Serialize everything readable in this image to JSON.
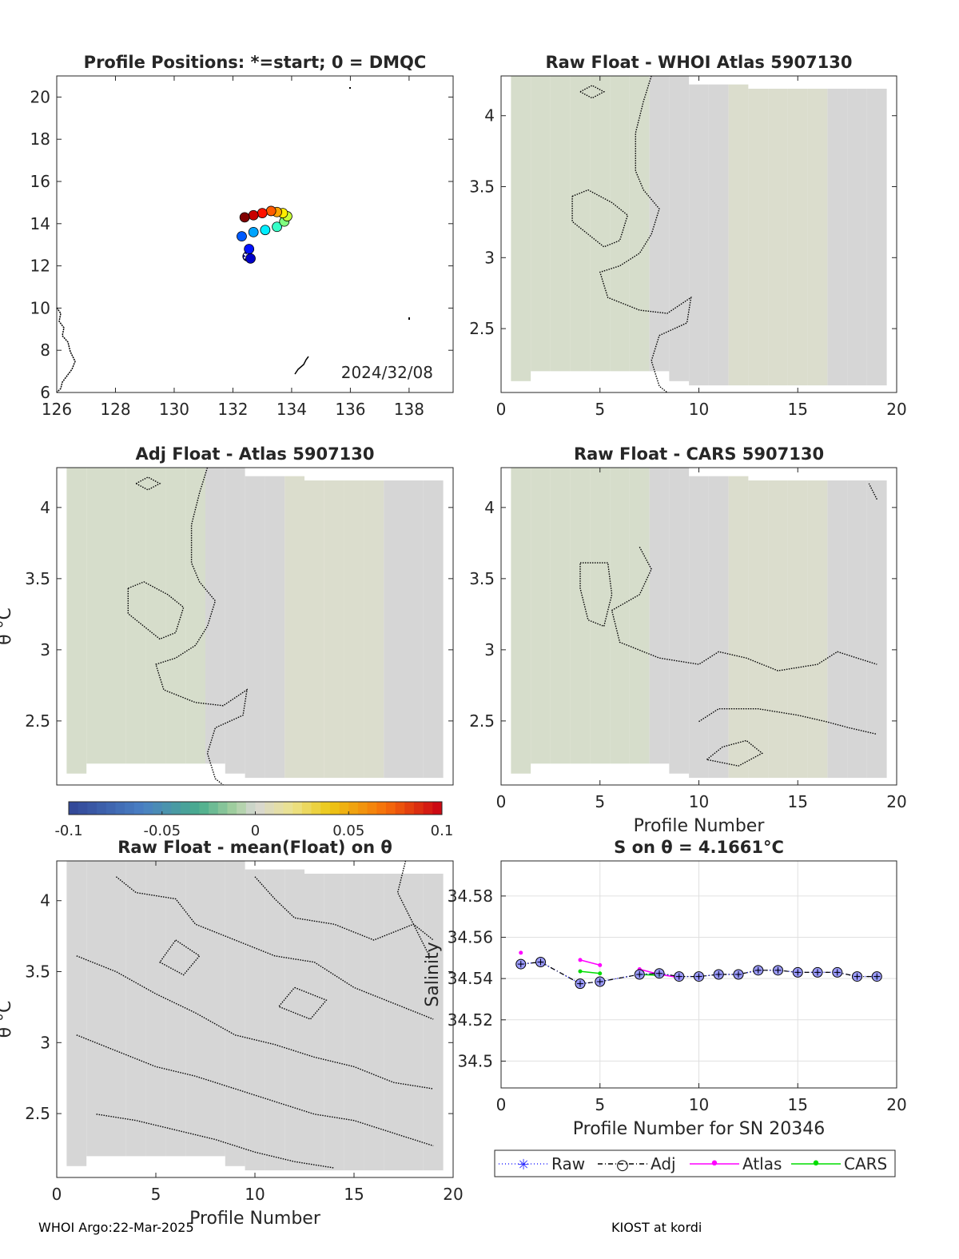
{
  "footer": {
    "left": "WHOI Argo:22-Mar-2025",
    "right": "KIOST at kordi"
  },
  "colors": {
    "surface": "#d6d6d6",
    "surface_tint_green": "#d6ddcb",
    "surface_tint_yellow": "#dbddcd",
    "raw_marker": "#2828ff",
    "adj_marker": "#000000",
    "atlas_line": "#ff00ff",
    "cars_line": "#00dd00"
  },
  "chart_data": [
    {
      "type": "scatter",
      "title": "Profile Positions: *=start; 0 = DMQC",
      "xlim": [
        126,
        139.5
      ],
      "ylim": [
        6,
        21
      ],
      "xticks": [
        "126",
        "128",
        "130",
        "132",
        "134",
        "136",
        "138"
      ],
      "yticks": [
        "6",
        "8",
        "10",
        "12",
        "14",
        "16",
        "18",
        "20"
      ],
      "annotation": "2024/32/08",
      "colormap": "jet",
      "start_index": 0,
      "points": [
        {
          "lon": 132.5,
          "lat": 12.45
        },
        {
          "lon": 132.6,
          "lat": 12.35
        },
        {
          "lon": 132.55,
          "lat": 12.8
        },
        {
          "lon": 132.3,
          "lat": 13.4
        },
        {
          "lon": 132.7,
          "lat": 13.6
        },
        {
          "lon": 133.1,
          "lat": 13.7
        },
        {
          "lon": 133.5,
          "lat": 13.85
        },
        {
          "lon": 133.75,
          "lat": 14.1
        },
        {
          "lon": 133.85,
          "lat": 14.35
        },
        {
          "lon": 133.7,
          "lat": 14.5
        },
        {
          "lon": 133.5,
          "lat": 14.55
        },
        {
          "lon": 133.3,
          "lat": 14.6
        },
        {
          "lon": 133.0,
          "lat": 14.5
        },
        {
          "lon": 132.7,
          "lat": 14.4
        },
        {
          "lon": 132.4,
          "lat": 14.3
        }
      ]
    },
    {
      "type": "heatmap",
      "title": "Raw Float - WHOI Atlas  5907130",
      "xlim": [
        0,
        20
      ],
      "ylim": [
        2.05,
        4.28
      ],
      "xticks": [
        "0",
        "5",
        "10",
        "15",
        "20"
      ],
      "yticks": [
        "2.5",
        "3",
        "3.5",
        "4"
      ],
      "xlabel": "",
      "ylabel": ""
    },
    {
      "type": "heatmap",
      "title": "Adj Float - Atlas  5907130",
      "xlim": [
        0,
        20
      ],
      "ylim": [
        2.05,
        4.28
      ],
      "xticks": [],
      "yticks": [
        "2.5",
        "3",
        "3.5",
        "4"
      ],
      "xlabel": "",
      "ylabel": "θ °C",
      "colorbar": {
        "min": -0.1,
        "max": 0.1,
        "ticks": [
          "-0.1",
          "-0.05",
          "0",
          "0.05",
          "0.1"
        ]
      }
    },
    {
      "type": "heatmap",
      "title": "Raw Float - CARS  5907130",
      "xlim": [
        0,
        20
      ],
      "ylim": [
        2.05,
        4.28
      ],
      "xticks": [
        "0",
        "5",
        "10",
        "15",
        "20"
      ],
      "yticks": [
        "2.5",
        "3",
        "3.5",
        "4"
      ],
      "xlabel": "Profile Number",
      "ylabel": ""
    },
    {
      "type": "heatmap",
      "title": "Raw Float - mean(Float) on θ",
      "xlim": [
        0,
        20
      ],
      "ylim": [
        2.05,
        4.28
      ],
      "xticks": [
        "0",
        "5",
        "10",
        "15",
        "20"
      ],
      "yticks": [
        "2.5",
        "3",
        "3.5",
        "4"
      ],
      "xlabel": "Profile Number",
      "ylabel": "θ °C"
    },
    {
      "type": "line",
      "title": "S on θ = 4.1661°C",
      "xlabel": "Profile Number for SN 20346",
      "ylabel": "Salinity",
      "xlim": [
        0,
        20
      ],
      "ylim": [
        34.487,
        34.597
      ],
      "xticks": [
        "0",
        "5",
        "10",
        "15",
        "20"
      ],
      "yticks": [
        "34.5",
        "34.52",
        "34.54",
        "34.56",
        "34.58"
      ],
      "grid": true,
      "legend_position": "bottom",
      "series": [
        {
          "name": "Raw",
          "x": [
            1,
            2,
            4,
            5,
            7,
            8,
            9,
            10,
            11,
            12,
            13,
            14,
            15,
            16,
            17,
            18,
            19
          ],
          "values": [
            34.547,
            34.548,
            34.5375,
            34.5385,
            34.542,
            34.5425,
            34.541,
            34.541,
            34.542,
            34.542,
            34.544,
            34.544,
            34.543,
            34.543,
            34.543,
            34.541,
            34.541
          ]
        },
        {
          "name": "Adj",
          "x": [
            1,
            2,
            4,
            5,
            7,
            8,
            9,
            10,
            11,
            12,
            13,
            14,
            15,
            16,
            17,
            18,
            19
          ],
          "values": [
            34.547,
            34.548,
            34.5375,
            34.5385,
            34.542,
            34.5425,
            34.541,
            34.541,
            34.542,
            34.542,
            34.544,
            34.544,
            34.543,
            34.543,
            34.543,
            34.541,
            34.541
          ]
        },
        {
          "name": "Atlas",
          "x": [
            1,
            4,
            5,
            7,
            8,
            9
          ],
          "values": [
            34.5525,
            34.549,
            34.5465,
            34.5445,
            34.542,
            34.5405
          ]
        },
        {
          "name": "CARS",
          "x": [
            4,
            5,
            7,
            8,
            19
          ],
          "values": [
            34.5435,
            34.5425,
            34.542,
            34.5415,
            34.5405
          ]
        }
      ]
    }
  ]
}
